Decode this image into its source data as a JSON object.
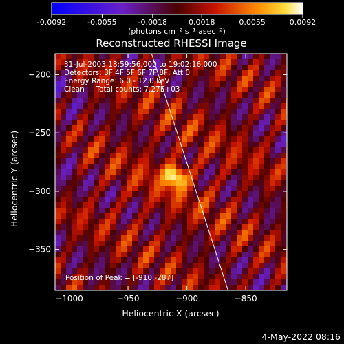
{
  "chart_data": {
    "type": "heatmap",
    "title": "Reconstructed RHESSI Image",
    "xlabel": "Heliocentric X (arcsec)",
    "ylabel": "Heliocentric Y (arcsec)",
    "xlim": [
      -1012,
      -815
    ],
    "ylim": [
      -385,
      -182
    ],
    "xticks": [
      -1000,
      -950,
      -900,
      -850
    ],
    "yticks": [
      -200,
      -250,
      -300,
      -350
    ],
    "xtick_labels": [
      "−1000",
      "−950",
      "−900",
      "−850"
    ],
    "ytick_labels": [
      "−200",
      "−250",
      "−300",
      "−350"
    ],
    "colorbar": {
      "range": [
        -0.0092,
        0.0092
      ],
      "ticks": [
        -0.0092,
        -0.0055,
        -0.0018,
        0.0018,
        0.0055,
        0.0092
      ],
      "tick_labels": [
        "-0.0092",
        "-0.0055",
        "-0.0018",
        "0.0018",
        "0.0055",
        "0.0092"
      ],
      "units_label": "(photons cm⁻² s⁻¹ asec⁻²)"
    },
    "peak": {
      "x": -910,
      "y": -287
    },
    "limb_line": {
      "x": [
        -930,
        -865
      ],
      "y": [
        -182,
        -385
      ]
    },
    "annotations": [
      "31-Jul-2003 18:59:56.000 to 19:02:16.000",
      "Detectors: 3F 4F 5F 6F 7F 8F, Att 0",
      "Energy Range: 6.0 - 12.0 keV",
      "Clean     Total counts: 7.27E+03"
    ],
    "peak_label": "Position of Peak = [-910,-287]"
  },
  "footer": {
    "date": "4-May-2022 08:16"
  }
}
